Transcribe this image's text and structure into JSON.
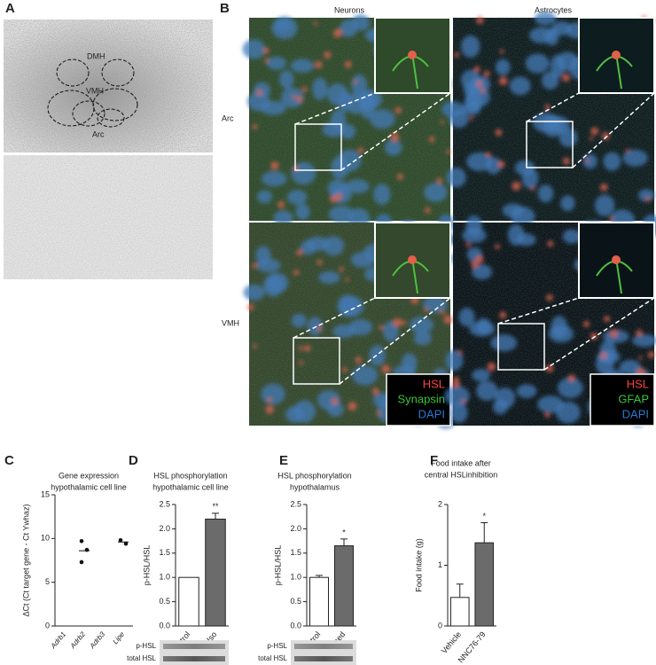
{
  "panel_a": {
    "letter": "A",
    "regions": [
      "DMH",
      "VMH",
      "Arc"
    ]
  },
  "panel_b": {
    "letter": "B",
    "columns": [
      "Neurons",
      "Astrocytes"
    ],
    "rows": [
      "Arc",
      "VMH"
    ],
    "legends": [
      [
        "HSL",
        "Synapsin",
        "DAPI"
      ],
      [
        "HSL",
        "GFAP",
        "DAPI"
      ]
    ]
  },
  "chart_data": [
    {
      "letter": "C",
      "type": "dot",
      "title": [
        "Gene expression",
        "hypothalamic cell line"
      ],
      "y_label": "ΔCt (Ct target gene - Ct Ywhaz)",
      "categories": [
        "Adrb1",
        "Adrb2",
        "Adrb3",
        "Lipe"
      ],
      "values": [
        null,
        8.6,
        null,
        9.6
      ],
      "points": [
        [],
        [
          9.7,
          8.7,
          7.3
        ],
        [],
        [
          9.8,
          9.4
        ]
      ],
      "ylim": [
        0,
        15
      ],
      "yticks": [
        0,
        5,
        10,
        15
      ]
    },
    {
      "letter": "D",
      "type": "bar",
      "title": [
        "HSL phosphorylation",
        "hypothalamic cell line"
      ],
      "y_label": "p-HSL/HSL",
      "categories": [
        "Control",
        "Iso"
      ],
      "values": [
        1.0,
        2.2
      ],
      "errors": [
        null,
        0.12
      ],
      "annotations": [
        null,
        "**"
      ],
      "colors": [
        "#ffffff",
        "#6b6b6b"
      ],
      "ylim": [
        0,
        2.5
      ],
      "yticks": [
        {
          "value": 0,
          "label": "0.0"
        },
        0.5,
        {
          "value": 1,
          "label": "1.0"
        },
        1.5,
        {
          "value": 2,
          "label": "2.0"
        },
        2.5
      ],
      "blot_labels": [
        "p-HSL",
        "total HSL"
      ]
    },
    {
      "letter": "E",
      "type": "bar",
      "title": [
        "HSL phosphorylation",
        "hypothalamus"
      ],
      "y_label": "p-HSL/HSL",
      "categories": [
        "Control",
        "Stressed"
      ],
      "values": [
        1.0,
        1.65
      ],
      "errors": [
        0.04,
        0.14
      ],
      "annotations": [
        null,
        "*"
      ],
      "colors": [
        "#ffffff",
        "#6b6b6b"
      ],
      "ylim": [
        0,
        2.5
      ],
      "yticks": [
        {
          "value": 0,
          "label": "0.0"
        },
        0.5,
        {
          "value": 1,
          "label": "1.0"
        },
        1.5,
        {
          "value": 2,
          "label": "2.0"
        },
        2.5
      ],
      "blot_labels": [
        "p-HSL",
        "total HSL"
      ]
    },
    {
      "letter": "F",
      "type": "bar",
      "title": [
        "Food intake after",
        "central HSLinhibition"
      ],
      "y_label": "Food intake (g)",
      "categories": [
        "Vehicle",
        "NNC76-79"
      ],
      "values": [
        0.47,
        1.37
      ],
      "errors": [
        0.22,
        0.33
      ],
      "annotations": [
        null,
        "*"
      ],
      "colors": [
        "#ffffff",
        "#6b6b6b"
      ],
      "ylim": [
        0,
        2
      ],
      "yticks": [
        0,
        1,
        2
      ]
    }
  ]
}
